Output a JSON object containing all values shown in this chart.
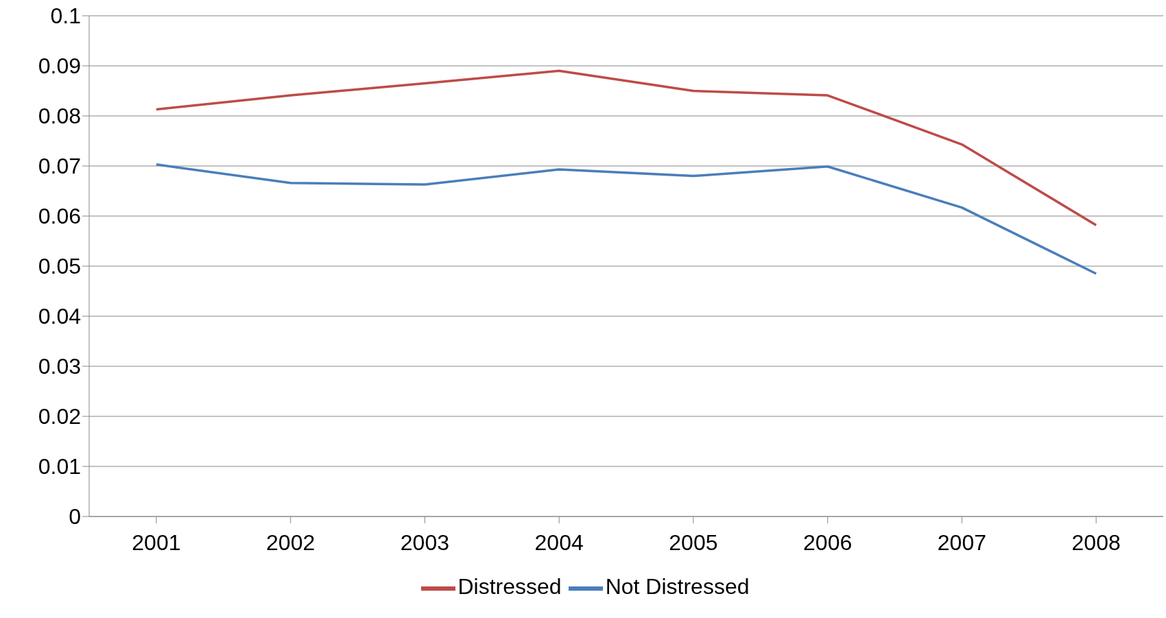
{
  "chart_data": {
    "type": "line",
    "categories": [
      "2001",
      "2002",
      "2003",
      "2004",
      "2005",
      "2006",
      "2007",
      "2008"
    ],
    "series": [
      {
        "name": "Not Distressed",
        "color": "#4a7ebb",
        "values": [
          0.0703,
          0.0666,
          0.0663,
          0.0693,
          0.068,
          0.0699,
          0.0617,
          0.0485
        ]
      },
      {
        "name": "Distressed",
        "color": "#be4b48",
        "values": [
          0.0813,
          0.0841,
          0.0865,
          0.089,
          0.085,
          0.0841,
          0.0743,
          0.0582
        ]
      }
    ],
    "ylim": [
      0,
      0.1
    ],
    "yticks": [
      0,
      0.01,
      0.02,
      0.03,
      0.04,
      0.05,
      0.06,
      0.07,
      0.08,
      0.09,
      0.1
    ],
    "grid": "y",
    "legend": "bottom",
    "marker": "none",
    "line_style": "solid"
  }
}
